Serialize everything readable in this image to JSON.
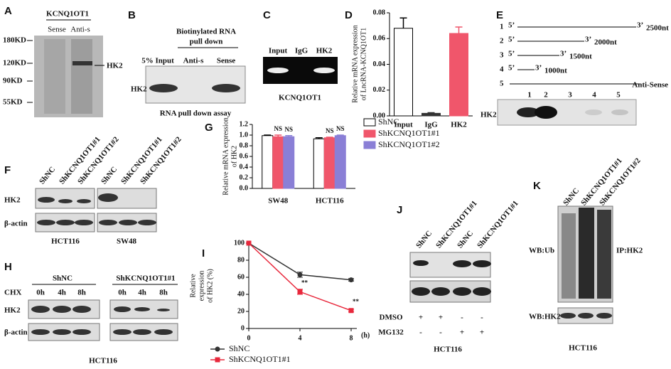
{
  "panels": {
    "A": {
      "letter": "A",
      "title": "KCNQ1OT1",
      "columns": [
        "Sense",
        "Anti-s"
      ],
      "markers": [
        "180KD",
        "120KD",
        "90KD",
        "55KD"
      ],
      "band": "HK2"
    },
    "B": {
      "letter": "B",
      "title": [
        "Biotinylated RNA",
        "pull down"
      ],
      "columns": [
        "5% Input",
        "Anti-s",
        "Sense"
      ],
      "row": "HK2",
      "caption": "RNA pull down assay"
    },
    "C": {
      "letter": "C",
      "columns": [
        "Input",
        "IgG",
        "HK2"
      ],
      "caption": "KCNQ1OT1"
    },
    "E": {
      "letter": "E",
      "constructs": [
        {
          "num": "1",
          "start": "5’",
          "end": "3’",
          "length": "2500nt"
        },
        {
          "num": "2",
          "start": "5’",
          "end": "3’",
          "length": "2000nt"
        },
        {
          "num": "3",
          "start": "5’",
          "end": "3’",
          "length": "1500nt"
        },
        {
          "num": "4",
          "start": "5’",
          "end": "3’",
          "length": "1000nt"
        },
        {
          "num": "5",
          "length": "Anti-Sense"
        }
      ],
      "lanes": [
        "1",
        "2",
        "3",
        "4",
        "5"
      ],
      "row": "HK2"
    },
    "F": {
      "letter": "F",
      "columns": [
        "ShNC",
        "ShKCNQ1OT1#1",
        "ShKCNQ1OT1#2"
      ],
      "rows": [
        "HK2",
        "β-actin"
      ],
      "groups": [
        "HCT116",
        "SW48"
      ]
    },
    "H": {
      "letter": "H",
      "groups": [
        "ShNC",
        "ShKCNQ1OT1#1"
      ],
      "treatment": "CHX",
      "times": [
        "0h",
        "4h",
        "8h"
      ],
      "rows": [
        "HK2",
        "β-actin"
      ],
      "caption": "HCT116"
    },
    "J": {
      "letter": "J",
      "columns": [
        "ShNC",
        "ShKCNQ1OT1#1",
        "ShNC",
        "ShKCNQ1OT1#1"
      ],
      "treatments": [
        {
          "name": "DMSO",
          "signs": [
            "+",
            "+",
            "-",
            "-"
          ]
        },
        {
          "name": "MG132",
          "signs": [
            "-",
            "-",
            "+",
            "+"
          ]
        }
      ],
      "caption": "HCT116"
    },
    "K": {
      "letter": "K",
      "columns": [
        "ShNC",
        "ShKCNQ1OT1#1",
        "ShKCNQ1OT1#2"
      ],
      "labels": [
        "WB:Ub",
        "IP:HK2",
        "WB:HK2"
      ],
      "caption": "HCT116"
    }
  },
  "chart_data": [
    {
      "type": "bar",
      "letter": "D",
      "ylabel": [
        "Relative mRNA expression",
        "of LncRNA-KCNQ1OT1"
      ],
      "categories": [
        "Input",
        "IgG",
        "HK2"
      ],
      "values": [
        0.068,
        0.002,
        0.064
      ],
      "errors": [
        0.008,
        0.0005,
        0.005
      ],
      "colors": [
        "#ffffff",
        "#333333",
        "#f0566b"
      ],
      "ylim": [
        0,
        0.08
      ],
      "yticks": [
        {
          "value": 0,
          "label": "0.00"
        },
        0.02,
        0.04,
        0.06,
        0.08
      ]
    },
    {
      "type": "bar",
      "letter": "G",
      "ylabel": [
        "Relative mRNA expression",
        "of HK2"
      ],
      "categories": [
        "SW48",
        "HCT116"
      ],
      "series": [
        {
          "name": "ShNC",
          "color": "#ffffff",
          "text_color": "#111111",
          "values": [
            0.99,
            0.93
          ],
          "errors": [
            0.01,
            0.02
          ]
        },
        {
          "name": "ShKCNQ1OT1#1",
          "color": "#f0566b",
          "text_color": "#e8283c",
          "values": [
            0.97,
            0.95
          ],
          "errors": [
            0.03,
            0.01
          ],
          "labels": [
            "NS",
            "NS"
          ]
        },
        {
          "name": "ShKCNQ1OT1#2",
          "color": "#8a7fd6",
          "text_color": "#4a46b8",
          "values": [
            0.97,
            0.99
          ],
          "errors": [
            0.02,
            0.01
          ],
          "labels": [
            "NS",
            "NS"
          ]
        }
      ],
      "ylim": [
        0,
        1.2
      ],
      "yticks": [
        {
          "value": 0,
          "label": "0.0"
        },
        0.2,
        0.4,
        0.6,
        0.8,
        {
          "value": 1,
          "label": "1.0"
        },
        1.2
      ]
    },
    {
      "type": "line",
      "letter": "I",
      "ylabel": [
        "Relative",
        "expression",
        "of HK2 (%)"
      ],
      "xlabel": "(h)",
      "x": [
        0,
        4,
        8
      ],
      "series": [
        {
          "name": "ShNC",
          "color": "#333333",
          "values": [
            100,
            63,
            57
          ],
          "errors": [
            0,
            3,
            1.5
          ]
        },
        {
          "name": "ShKCNQ1OT1#1",
          "color": "#e8283c",
          "values": [
            100,
            43,
            21
          ],
          "errors": [
            0,
            3,
            1.5
          ],
          "labels": [
            null,
            "**",
            "**"
          ]
        }
      ],
      "xlim": [
        0,
        8
      ],
      "xticks": [
        0,
        4,
        8
      ],
      "ylim": [
        0,
        100
      ],
      "yticks": [
        0,
        20,
        40,
        60,
        80,
        100
      ]
    }
  ]
}
